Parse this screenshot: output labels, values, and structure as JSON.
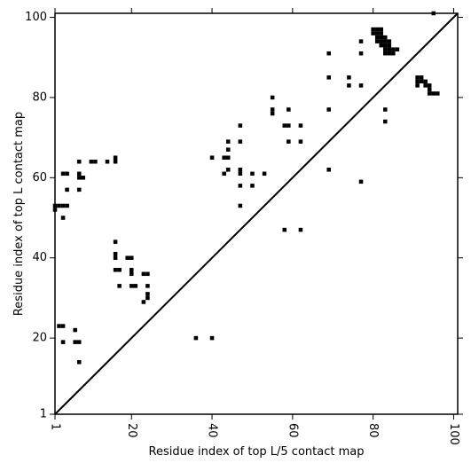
{
  "chart_data": {
    "type": "scatter",
    "marker": "square",
    "color": "#000000",
    "xlabel": "Residue index of top L/5 contact map",
    "ylabel": "Residue index of top L contact map",
    "xlim": [
      1,
      101
    ],
    "ylim": [
      1,
      101
    ],
    "xticks": [
      {
        "value": 1,
        "label": "1"
      },
      {
        "value": 20,
        "label": "20"
      },
      {
        "value": 40,
        "label": "40"
      },
      {
        "value": 60,
        "label": "60"
      },
      {
        "value": 80,
        "label": "80"
      },
      {
        "value": 100,
        "label": "100"
      }
    ],
    "yticks": [
      {
        "value": 1,
        "label": "1"
      },
      {
        "value": 20,
        "label": "20"
      },
      {
        "value": 40,
        "label": "40"
      },
      {
        "value": 60,
        "label": "60"
      },
      {
        "value": 80,
        "label": "80"
      },
      {
        "value": 100,
        "label": "100"
      }
    ],
    "xtick_rotation": -90,
    "diagonal": true,
    "grid": false,
    "points": [
      [
        1,
        53
      ],
      [
        1,
        52
      ],
      [
        2,
        53
      ],
      [
        3,
        53
      ],
      [
        4,
        53
      ],
      [
        3,
        61
      ],
      [
        4,
        61
      ],
      [
        3,
        50
      ],
      [
        4,
        57
      ],
      [
        7,
        64
      ],
      [
        7,
        61
      ],
      [
        7,
        60
      ],
      [
        8,
        60
      ],
      [
        7,
        57
      ],
      [
        10,
        64
      ],
      [
        11,
        64
      ],
      [
        14,
        64
      ],
      [
        16,
        65
      ],
      [
        16,
        64
      ],
      [
        2,
        23
      ],
      [
        3,
        23
      ],
      [
        3,
        19
      ],
      [
        6,
        22
      ],
      [
        6,
        19
      ],
      [
        7,
        19
      ],
      [
        7,
        14
      ],
      [
        16,
        44
      ],
      [
        16,
        41
      ],
      [
        16,
        40
      ],
      [
        16,
        37
      ],
      [
        17,
        37
      ],
      [
        17,
        33
      ],
      [
        19,
        40
      ],
      [
        20,
        40
      ],
      [
        20,
        37
      ],
      [
        20,
        36
      ],
      [
        20,
        33
      ],
      [
        21,
        33
      ],
      [
        23,
        36
      ],
      [
        24,
        36
      ],
      [
        24,
        33
      ],
      [
        24,
        31
      ],
      [
        24,
        30
      ],
      [
        23,
        29
      ],
      [
        36,
        20
      ],
      [
        40,
        20
      ],
      [
        40,
        65
      ],
      [
        43,
        65
      ],
      [
        44,
        65
      ],
      [
        43,
        61
      ],
      [
        44,
        62
      ],
      [
        44,
        67
      ],
      [
        44,
        69
      ],
      [
        47,
        73
      ],
      [
        47,
        69
      ],
      [
        47,
        62
      ],
      [
        47,
        61
      ],
      [
        47,
        58
      ],
      [
        47,
        53
      ],
      [
        50,
        61
      ],
      [
        50,
        58
      ],
      [
        53,
        61
      ],
      [
        55,
        80
      ],
      [
        55,
        77
      ],
      [
        55,
        76
      ],
      [
        58,
        73
      ],
      [
        59,
        73
      ],
      [
        59,
        77
      ],
      [
        59,
        69
      ],
      [
        58,
        47
      ],
      [
        62,
        73
      ],
      [
        62,
        69
      ],
      [
        62,
        47
      ],
      [
        69,
        91
      ],
      [
        69,
        85
      ],
      [
        69,
        77
      ],
      [
        69,
        62
      ],
      [
        74,
        85
      ],
      [
        74,
        83
      ],
      [
        77,
        94
      ],
      [
        77,
        91
      ],
      [
        77,
        83
      ],
      [
        77,
        59
      ],
      [
        80,
        97
      ],
      [
        80,
        96
      ],
      [
        81,
        97
      ],
      [
        81,
        96
      ],
      [
        81,
        95
      ],
      [
        81,
        94
      ],
      [
        82,
        97
      ],
      [
        82,
        96
      ],
      [
        82,
        95
      ],
      [
        82,
        94
      ],
      [
        82,
        93
      ],
      [
        83,
        95
      ],
      [
        83,
        94
      ],
      [
        83,
        93
      ],
      [
        83,
        92
      ],
      [
        83,
        91
      ],
      [
        84,
        94
      ],
      [
        84,
        93
      ],
      [
        84,
        92
      ],
      [
        84,
        91
      ],
      [
        85,
        92
      ],
      [
        85,
        91
      ],
      [
        86,
        92
      ],
      [
        83,
        77
      ],
      [
        83,
        74
      ],
      [
        91,
        85
      ],
      [
        91,
        84
      ],
      [
        91,
        83
      ],
      [
        92,
        85
      ],
      [
        92,
        84
      ],
      [
        93,
        84
      ],
      [
        93,
        83
      ],
      [
        94,
        83
      ],
      [
        94,
        82
      ],
      [
        94,
        81
      ],
      [
        95,
        81
      ],
      [
        96,
        81
      ],
      [
        95,
        101
      ]
    ]
  }
}
